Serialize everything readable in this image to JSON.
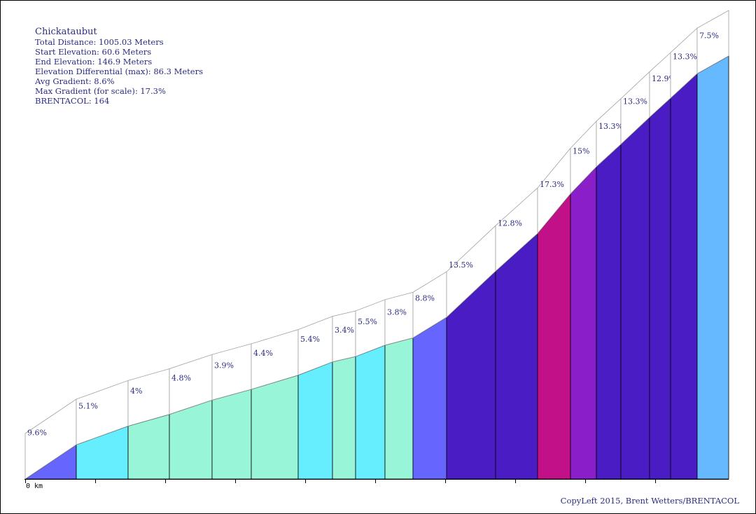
{
  "info": {
    "title": "Chickataubut",
    "total_distance": "Total Distance: 1005.03 Meters",
    "start_elevation": "Start Elevation: 60.6 Meters",
    "end_elevation": "End Elevation: 146.9 Meters",
    "elevation_differential": "Elevation Differential (max): 86.3 Meters",
    "avg_gradient": "Avg Gradient: 8.6%",
    "max_gradient": "Max Gradient (for scale): 17.3%",
    "brentacol": "BRENTACOL: 164"
  },
  "axis": {
    "start_label": "0 km"
  },
  "copyright": "CopyLeft 2015, Brent Wetters/BRENTACOL",
  "chart_data": {
    "type": "area",
    "title": "Chickataubut",
    "x_unit": "m",
    "y_unit": "m",
    "xlim": [
      0,
      1005.03
    ],
    "ylim": [
      60.6,
      146.9
    ],
    "segments": [
      {
        "x0": 0,
        "x1": 73,
        "y0": 60.6,
        "y1": 67.6,
        "gradient_label": "9.6%",
        "color": "#6666ff"
      },
      {
        "x0": 73,
        "x1": 147,
        "y0": 67.6,
        "y1": 71.4,
        "gradient_label": "5.1%",
        "color": "#66eeff"
      },
      {
        "x0": 147,
        "x1": 206,
        "y0": 71.4,
        "y1": 73.8,
        "gradient_label": "4%",
        "color": "#99f5d8"
      },
      {
        "x0": 206,
        "x1": 267,
        "y0": 73.8,
        "y1": 76.7,
        "gradient_label": "4.8%",
        "color": "#99f5d8"
      },
      {
        "x0": 267,
        "x1": 323,
        "y0": 76.7,
        "y1": 78.9,
        "gradient_label": "3.9%",
        "color": "#99f5d8"
      },
      {
        "x0": 323,
        "x1": 390,
        "y0": 78.9,
        "y1": 81.8,
        "gradient_label": "4.4%",
        "color": "#99f5d8"
      },
      {
        "x0": 390,
        "x1": 439,
        "y0": 81.8,
        "y1": 84.5,
        "gradient_label": "5.4%",
        "color": "#66eeff"
      },
      {
        "x0": 439,
        "x1": 472,
        "y0": 84.5,
        "y1": 85.6,
        "gradient_label": "3.4%",
        "color": "#99f5d8"
      },
      {
        "x0": 472,
        "x1": 514,
        "y0": 85.6,
        "y1": 87.9,
        "gradient_label": "5.5%",
        "color": "#66eeff"
      },
      {
        "x0": 514,
        "x1": 554,
        "y0": 87.9,
        "y1": 89.4,
        "gradient_label": "3.8%",
        "color": "#99f5d8"
      },
      {
        "x0": 554,
        "x1": 602,
        "y0": 89.4,
        "y1": 93.6,
        "gradient_label": "8.8%",
        "color": "#6666ff"
      },
      {
        "x0": 602,
        "x1": 672,
        "y0": 93.6,
        "y1": 103.0,
        "gradient_label": "13.5%",
        "color": "#4a1dc4"
      },
      {
        "x0": 672,
        "x1": 732,
        "y0": 103.0,
        "y1": 110.7,
        "gradient_label": "12.8%",
        "color": "#4a1dc4"
      },
      {
        "x0": 732,
        "x1": 779,
        "y0": 110.7,
        "y1": 118.8,
        "gradient_label": "17.3%",
        "color": "#c21088"
      },
      {
        "x0": 779,
        "x1": 816,
        "y0": 118.8,
        "y1": 124.3,
        "gradient_label": "15%",
        "color": "#8a1ec8"
      },
      {
        "x0": 816,
        "x1": 851,
        "y0": 124.3,
        "y1": 128.9,
        "gradient_label": "13.3%",
        "color": "#4a1dc4"
      },
      {
        "x0": 851,
        "x1": 892,
        "y0": 128.9,
        "y1": 134.4,
        "gradient_label": "13.3%",
        "color": "#4a1dc4"
      },
      {
        "x0": 892,
        "x1": 922,
        "y0": 134.4,
        "y1": 138.3,
        "gradient_label": "12.9%",
        "color": "#4a1dc4"
      },
      {
        "x0": 922,
        "x1": 960,
        "y0": 138.3,
        "y1": 143.3,
        "gradient_label": "13.3%",
        "color": "#4a1dc4"
      },
      {
        "x0": 960,
        "x1": 1005.03,
        "y0": 143.3,
        "y1": 146.9,
        "gradient_label": "7.5%",
        "color": "#66b8ff"
      }
    ],
    "x_ticks": [
      0,
      100,
      200,
      300,
      400,
      500,
      600,
      700,
      800,
      900
    ]
  }
}
